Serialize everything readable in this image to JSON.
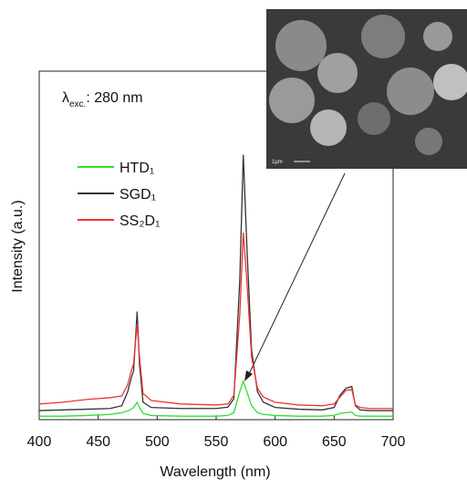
{
  "chart_data": {
    "type": "line",
    "x_label": "Wavelength (nm)",
    "y_label": "Intensity (a.u.)",
    "annotation": {
      "symbol": "λ",
      "subscript": "exc.",
      "text": ": 280 nm"
    },
    "inset_scale_label": "1μm",
    "x": [
      400,
      420,
      440,
      460,
      470,
      475,
      478,
      480,
      483,
      485,
      488,
      495,
      520,
      550,
      560,
      565,
      570,
      573,
      576,
      580,
      585,
      590,
      600,
      620,
      640,
      650,
      655,
      660,
      665,
      668,
      672,
      680,
      700
    ],
    "series": [
      {
        "name": "HTD₁",
        "color": "#33dd33",
        "values": [
          1,
          1,
          1.2,
          1.5,
          2,
          2.5,
          3,
          3.5,
          5,
          3.5,
          1.8,
          1.2,
          1,
          1,
          1.2,
          2,
          8,
          11,
          8,
          4,
          2,
          1.5,
          1.2,
          1,
          1,
          1.2,
          1.8,
          2,
          2.2,
          1.2,
          1,
          1,
          1
        ]
      },
      {
        "name": "SGD₁",
        "color": "#333333",
        "values": [
          2.6,
          2.8,
          3,
          3.2,
          4,
          8,
          12,
          14,
          31,
          16,
          5,
          3.5,
          3.2,
          3.2,
          3.6,
          6,
          40,
          76,
          50,
          20,
          8,
          5,
          3.5,
          3,
          2.8,
          3.5,
          7,
          9,
          9.5,
          4,
          2.8,
          2.6,
          2.6
        ]
      },
      {
        "name": "SS₂D₁",
        "color": "#ee3333",
        "values": [
          4.5,
          5,
          5.8,
          6.3,
          6.8,
          10,
          14,
          16,
          27.5,
          18,
          7.5,
          5.5,
          4.5,
          4.2,
          4.5,
          7,
          30,
          53.7,
          40,
          18,
          9,
          6.5,
          5,
          4.2,
          4,
          4.5,
          6.5,
          8.4,
          8.6,
          4.2,
          3.5,
          3.2,
          3.2
        ]
      }
    ],
    "xlim": [
      400,
      700
    ],
    "xticks": [
      400,
      450,
      500,
      550,
      600,
      650,
      700
    ],
    "ylim": [
      0,
      100
    ]
  }
}
